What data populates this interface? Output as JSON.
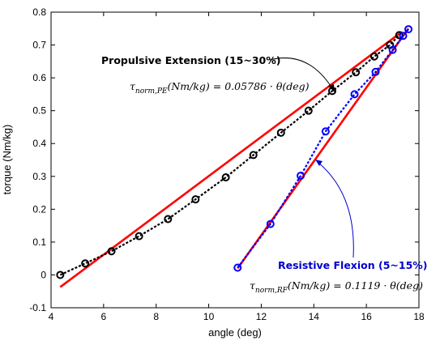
{
  "chart_data": {
    "type": "line",
    "xlabel": "angle (deg)",
    "ylabel": "torque (Nm/kg)",
    "xlim": [
      4,
      18
    ],
    "ylim": [
      -0.1,
      0.8
    ],
    "xticks": [
      "4",
      "6",
      "8",
      "10",
      "12",
      "14",
      "16",
      "18"
    ],
    "yticks": [
      "-0.1",
      "0",
      "0.1",
      "0.2",
      "0.3",
      "0.4",
      "0.5",
      "0.6",
      "0.7",
      "0.8"
    ],
    "grid": false,
    "series": [
      {
        "role": "measured",
        "marker": "circle",
        "linestyle": "dotted",
        "color": "#000000",
        "x": [
          4.35,
          5.3,
          6.3,
          7.35,
          8.45,
          9.5,
          10.65,
          11.7,
          12.75,
          13.8,
          14.7,
          15.6,
          16.3,
          16.9,
          17.25
        ],
        "y": [
          0.0,
          0.035,
          0.072,
          0.118,
          0.17,
          0.23,
          0.297,
          0.365,
          0.433,
          0.5,
          0.56,
          0.617,
          0.665,
          0.7,
          0.73
        ]
      },
      {
        "role": "measured",
        "marker": "circle",
        "linestyle": "dotted",
        "color": "#0000ff",
        "x": [
          11.1,
          12.35,
          13.5,
          14.45,
          15.55,
          16.35,
          17.0,
          17.4,
          17.6
        ],
        "y": [
          0.022,
          0.155,
          0.302,
          0.437,
          0.55,
          0.618,
          0.685,
          0.728,
          0.748
        ]
      },
      {
        "role": "fit",
        "color": "#ff0000",
        "x": [
          4.35,
          17.35
        ],
        "y": [
          -0.037,
          0.74
        ]
      },
      {
        "role": "fit",
        "color": "#ff0000",
        "x": [
          11.1,
          17.6
        ],
        "y": [
          0.02,
          0.75
        ]
      }
    ],
    "annotations": [
      {
        "text": "Propulsive Extension (15~30%)",
        "color": "#000000"
      },
      {
        "text": "Resistive Flexion (5~15%)",
        "color": "#0000cc"
      }
    ],
    "equations": [
      {
        "lhs": "τ",
        "sub": "norm,PE",
        "rhs": "(Nm/kg) = 0.05786 · θ(deg)"
      },
      {
        "lhs": "τ",
        "sub": "norm,RF",
        "rhs": "(Nm/kg) = 0.1119 · θ(deg)"
      }
    ]
  }
}
